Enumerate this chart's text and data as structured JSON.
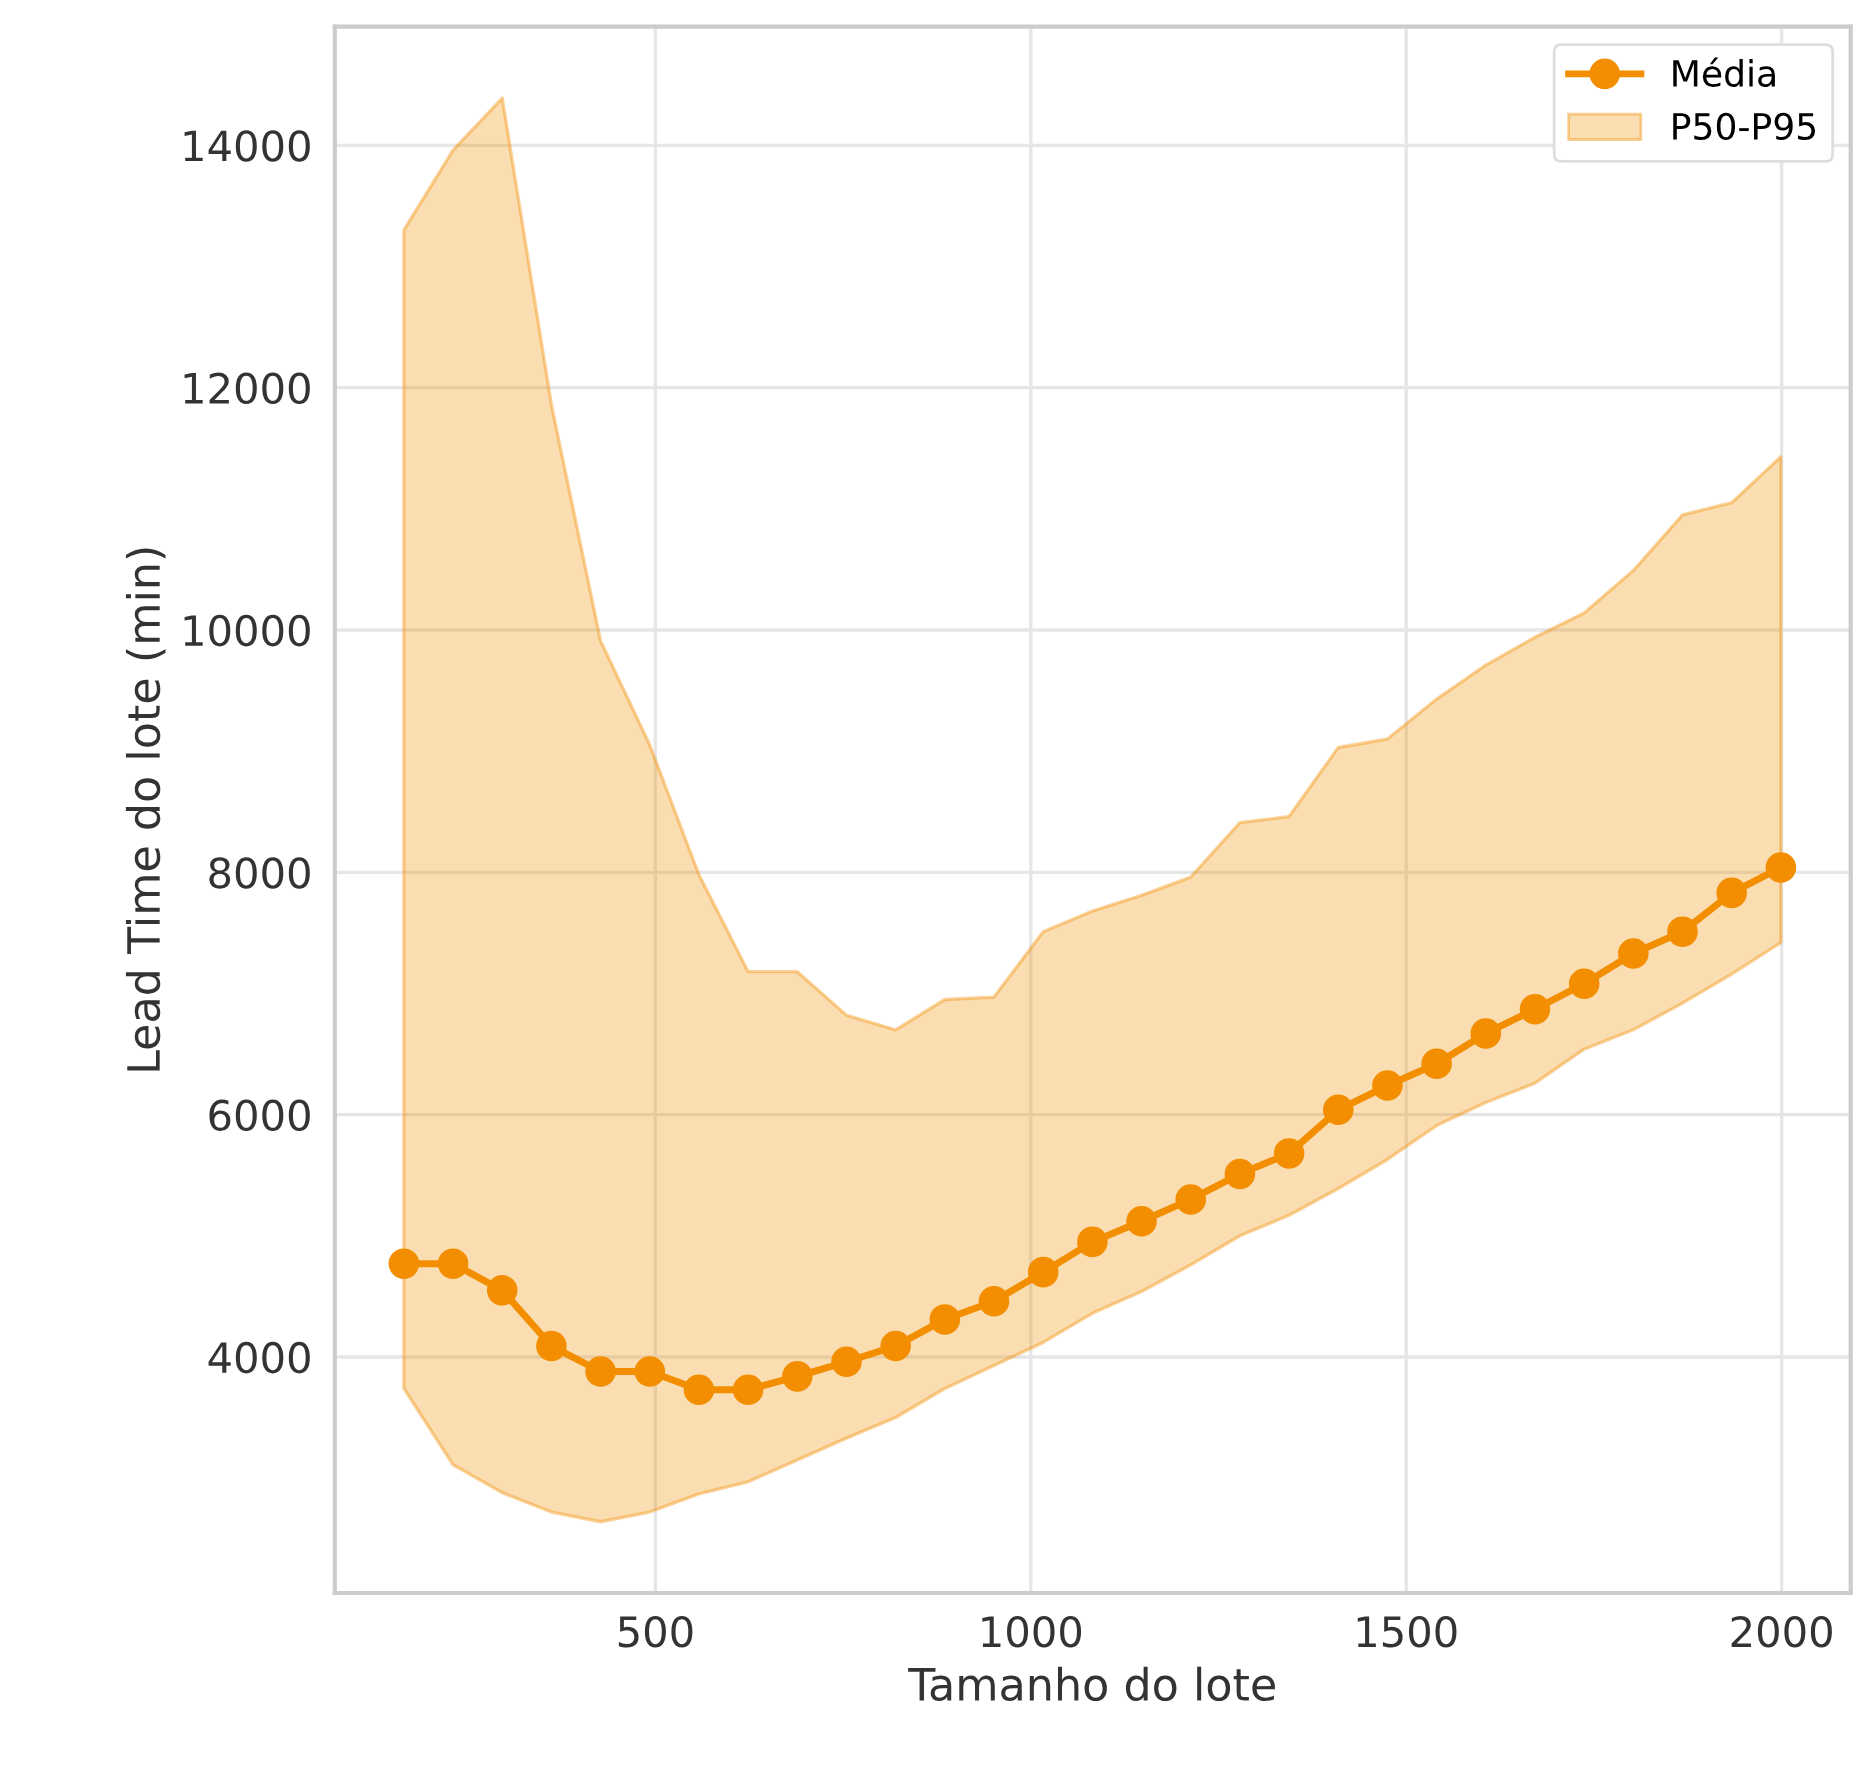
{
  "chart_data": {
    "type": "line",
    "xlabel": "Tamanho do lote",
    "ylabel": "Lead Time do lote (min)",
    "x": [
      165,
      230.5,
      296,
      361.5,
      427,
      492.5,
      558,
      623.5,
      689,
      754.5,
      820,
      885.5,
      951,
      1016.5,
      1082,
      1147.5,
      1213,
      1278.5,
      1344,
      1409.5,
      1475,
      1540.5,
      1606,
      1671.5,
      1737,
      1802.5,
      1868,
      1933.5,
      1999
    ],
    "xlim": [
      73,
      2092
    ],
    "ylim": [
      2052,
      14980
    ],
    "xticks": [
      500,
      1000,
      1500,
      2000
    ],
    "yticks": [
      4000,
      6000,
      8000,
      10000,
      12000,
      14000
    ],
    "grid": true,
    "legend": "top right",
    "annotations": [
      "P50-P95"
    ],
    "series": [
      {
        "name": "Média",
        "color": "#f28e00",
        "marker": "circle",
        "line_style": "solid",
        "values": [
          4770,
          4770,
          4550,
          4090,
          3880,
          3880,
          3730,
          3730,
          3840,
          3960,
          4090,
          4310,
          4460,
          4700,
          4950,
          5120,
          5300,
          5510,
          5680,
          6040,
          6240,
          6420,
          6670,
          6870,
          7080,
          7330,
          7510,
          7830,
          8040
        ],
        "lower": [
          3740,
          3110,
          2880,
          2720,
          2640,
          2720,
          2870,
          2970,
          3150,
          3330,
          3500,
          3740,
          3930,
          4120,
          4360,
          4540,
          4760,
          5000,
          5170,
          5390,
          5630,
          5910,
          6100,
          6260,
          6540,
          6700,
          6920,
          7160,
          7420
        ],
        "upper": [
          13300,
          13960,
          14390,
          11860,
          9910,
          9050,
          7980,
          7180,
          7180,
          6820,
          6700,
          6950,
          6970,
          7510,
          7680,
          7810,
          7960,
          8410,
          8460,
          9030,
          9100,
          9430,
          9710,
          9940,
          10140,
          10490,
          10950,
          11050,
          11430
        ]
      }
    ]
  }
}
